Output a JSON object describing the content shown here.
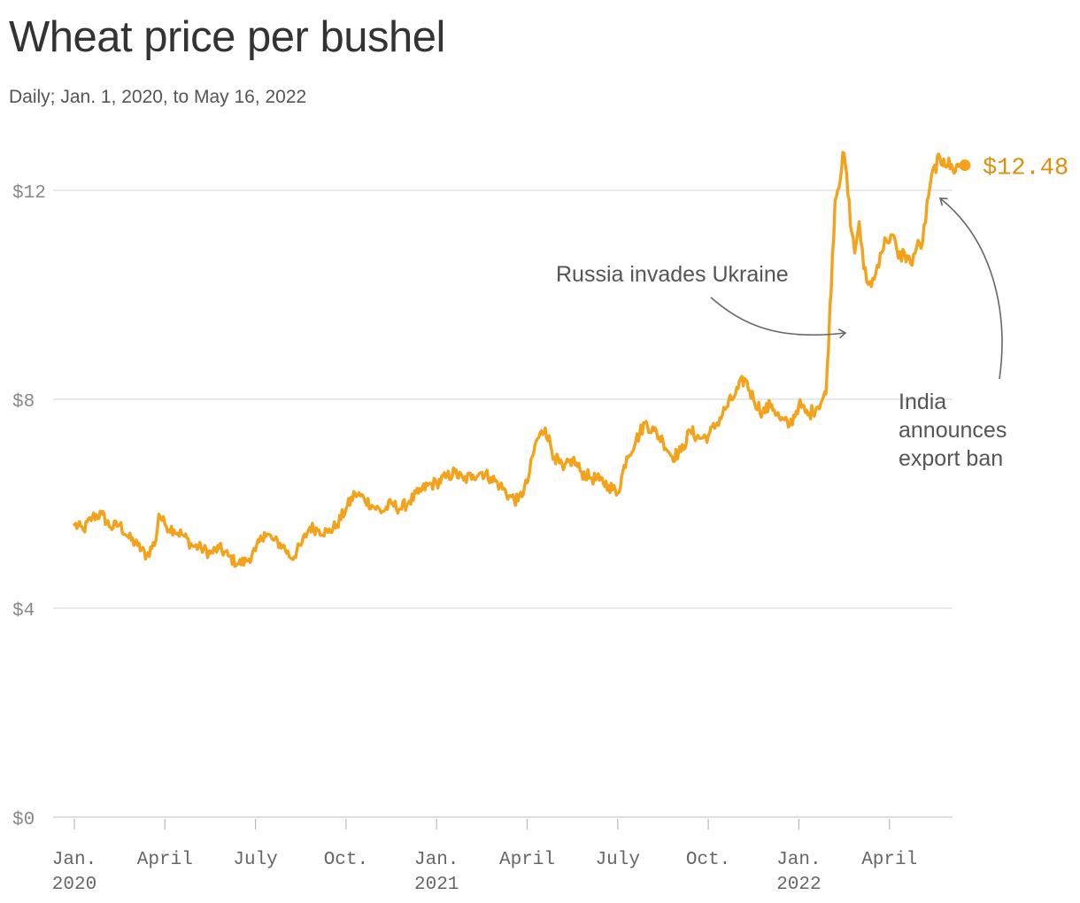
{
  "chart_data": {
    "type": "line",
    "title": "Wheat price per bushel",
    "subtitle": "Daily; Jan. 1, 2020, to May 16, 2022",
    "xlabel": "",
    "ylabel": "",
    "ylim": [
      0,
      12.5
    ],
    "y_ticks": [
      {
        "value": 0,
        "label": "$0"
      },
      {
        "value": 4,
        "label": "$4"
      },
      {
        "value": 8,
        "label": "$8"
      },
      {
        "value": 12,
        "label": "$12"
      }
    ],
    "x_ticks": [
      {
        "month": 0,
        "line1": "Jan.",
        "line2": "2020"
      },
      {
        "month": 3,
        "line1": "April",
        "line2": ""
      },
      {
        "month": 6,
        "line1": "July",
        "line2": ""
      },
      {
        "month": 9,
        "line1": "Oct.",
        "line2": ""
      },
      {
        "month": 12,
        "line1": "Jan.",
        "line2": "2021"
      },
      {
        "month": 15,
        "line1": "April",
        "line2": ""
      },
      {
        "month": 18,
        "line1": "July",
        "line2": ""
      },
      {
        "month": 21,
        "line1": "Oct.",
        "line2": ""
      },
      {
        "month": 24,
        "line1": "Jan.",
        "line2": "2022"
      },
      {
        "month": 27,
        "line1": "April",
        "line2": ""
      }
    ],
    "series": [
      {
        "name": "Wheat price per bushel",
        "color": "#F5A21B",
        "x_unit": "months since Jan. 1, 2020",
        "x": [
          0,
          0.3,
          0.6,
          0.9,
          1.2,
          1.5,
          1.8,
          2.1,
          2.4,
          2.7,
          2.8,
          3.0,
          3.3,
          3.6,
          3.9,
          4.2,
          4.5,
          4.8,
          5.1,
          5.4,
          5.7,
          6.0,
          6.3,
          6.6,
          6.9,
          7.2,
          7.5,
          7.8,
          8.1,
          8.4,
          8.7,
          9.0,
          9.3,
          9.6,
          9.9,
          10.2,
          10.5,
          10.8,
          11.1,
          11.4,
          11.7,
          12.0,
          12.3,
          12.6,
          12.9,
          13.2,
          13.5,
          13.8,
          14.1,
          14.4,
          14.7,
          15.0,
          15.3,
          15.6,
          15.9,
          16.2,
          16.5,
          16.8,
          17.1,
          17.4,
          17.7,
          18.0,
          18.3,
          18.6,
          18.9,
          19.2,
          19.5,
          19.8,
          20.1,
          20.4,
          20.7,
          21.0,
          21.3,
          21.6,
          21.9,
          22.2,
          22.5,
          22.8,
          23.1,
          23.4,
          23.7,
          24.0,
          24.3,
          24.6,
          24.9,
          25.2,
          25.5,
          25.75,
          25.85,
          26.0,
          26.15,
          26.3,
          26.5,
          26.7,
          26.9,
          27.1,
          27.3,
          27.5,
          27.7,
          27.9,
          28.1,
          28.3,
          28.5,
          28.8,
          29.1,
          29.35,
          29.5
        ],
        "values": [
          5.6,
          5.5,
          5.75,
          5.8,
          5.55,
          5.6,
          5.35,
          5.2,
          5.0,
          5.3,
          5.8,
          5.6,
          5.5,
          5.4,
          5.2,
          5.15,
          5.05,
          5.15,
          5.0,
          4.85,
          4.9,
          5.1,
          5.45,
          5.3,
          5.2,
          4.95,
          5.2,
          5.55,
          5.5,
          5.45,
          5.6,
          5.9,
          6.2,
          6.1,
          5.95,
          5.85,
          6.0,
          5.9,
          6.05,
          6.2,
          6.35,
          6.4,
          6.5,
          6.6,
          6.45,
          6.55,
          6.6,
          6.5,
          6.35,
          6.15,
          6.05,
          6.4,
          7.2,
          7.45,
          6.9,
          6.65,
          6.85,
          6.6,
          6.5,
          6.45,
          6.35,
          6.2,
          6.9,
          7.2,
          7.55,
          7.4,
          7.2,
          6.9,
          7.0,
          7.4,
          7.25,
          7.3,
          7.55,
          7.85,
          8.1,
          8.4,
          8.0,
          7.75,
          7.9,
          7.6,
          7.5,
          7.9,
          7.7,
          7.85,
          8.1,
          11.8,
          12.7,
          11.2,
          10.8,
          11.4,
          10.5,
          10.2,
          10.3,
          10.8,
          11.05,
          11.15,
          10.7,
          10.8,
          10.6,
          10.9,
          11.0,
          11.9,
          12.48,
          12.6,
          12.4,
          12.5,
          12.48
        ]
      }
    ],
    "end_label": "$12.48",
    "annotations": [
      {
        "lines": [
          "Russia invades Ukraine"
        ],
        "x": 25.6,
        "y": 9.3
      },
      {
        "lines": [
          "India",
          "announces",
          "export ban"
        ],
        "x": 29.4,
        "y": 11.9
      }
    ]
  }
}
